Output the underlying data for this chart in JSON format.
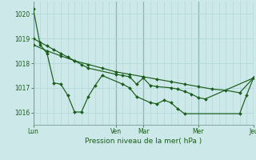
{
  "xlabel": "Pression niveau de la mer( hPa )",
  "bg_color": "#cce8e8",
  "grid_minor_color": "#b4d8d8",
  "grid_major_color": "#88b8b8",
  "line_color": "#1a5c1a",
  "ylim": [
    1015.5,
    1020.5
  ],
  "yticks": [
    1016,
    1017,
    1018,
    1019,
    1020
  ],
  "xlim": [
    0,
    32
  ],
  "xtick_labels": [
    "Lun",
    "Ven",
    "Mar",
    "Mer",
    "Jeu"
  ],
  "xtick_positions": [
    0,
    12,
    16,
    24,
    32
  ],
  "vline_major": [
    0,
    12,
    16,
    24,
    32
  ],
  "num_minor_vlines": 33,
  "series": [
    {
      "x": [
        0,
        1,
        2,
        3,
        4,
        5,
        6,
        7,
        8,
        9,
        10,
        13,
        14,
        15,
        17,
        18,
        19,
        20,
        21,
        22,
        30,
        31,
        32
      ],
      "y": [
        1020.2,
        1018.75,
        1018.4,
        1017.2,
        1017.15,
        1016.7,
        1016.02,
        1016.02,
        1016.65,
        1017.1,
        1017.5,
        1017.15,
        1017.0,
        1016.65,
        1016.4,
        1016.35,
        1016.5,
        1016.4,
        1016.15,
        1015.95,
        1015.95,
        1016.7,
        1017.4
      ]
    },
    {
      "x": [
        0,
        2,
        4,
        6,
        8,
        10,
        12,
        14,
        16,
        18,
        20,
        22,
        24,
        26,
        28,
        30,
        32
      ],
      "y": [
        1018.75,
        1018.5,
        1018.3,
        1018.1,
        1017.95,
        1017.8,
        1017.65,
        1017.55,
        1017.45,
        1017.35,
        1017.25,
        1017.15,
        1017.05,
        1016.95,
        1016.9,
        1016.8,
        1017.4
      ]
    },
    {
      "x": [
        0,
        1,
        2,
        3,
        4,
        5,
        6,
        7,
        8,
        12,
        13,
        14,
        15,
        16,
        17,
        18,
        20,
        21,
        22,
        23,
        24,
        25,
        32
      ],
      "y": [
        1019.0,
        1018.85,
        1018.7,
        1018.55,
        1018.4,
        1018.25,
        1018.1,
        1017.95,
        1017.8,
        1017.55,
        1017.5,
        1017.45,
        1017.15,
        1017.4,
        1017.1,
        1017.05,
        1017.0,
        1016.95,
        1016.85,
        1016.75,
        1016.6,
        1016.55,
        1017.4
      ]
    }
  ]
}
